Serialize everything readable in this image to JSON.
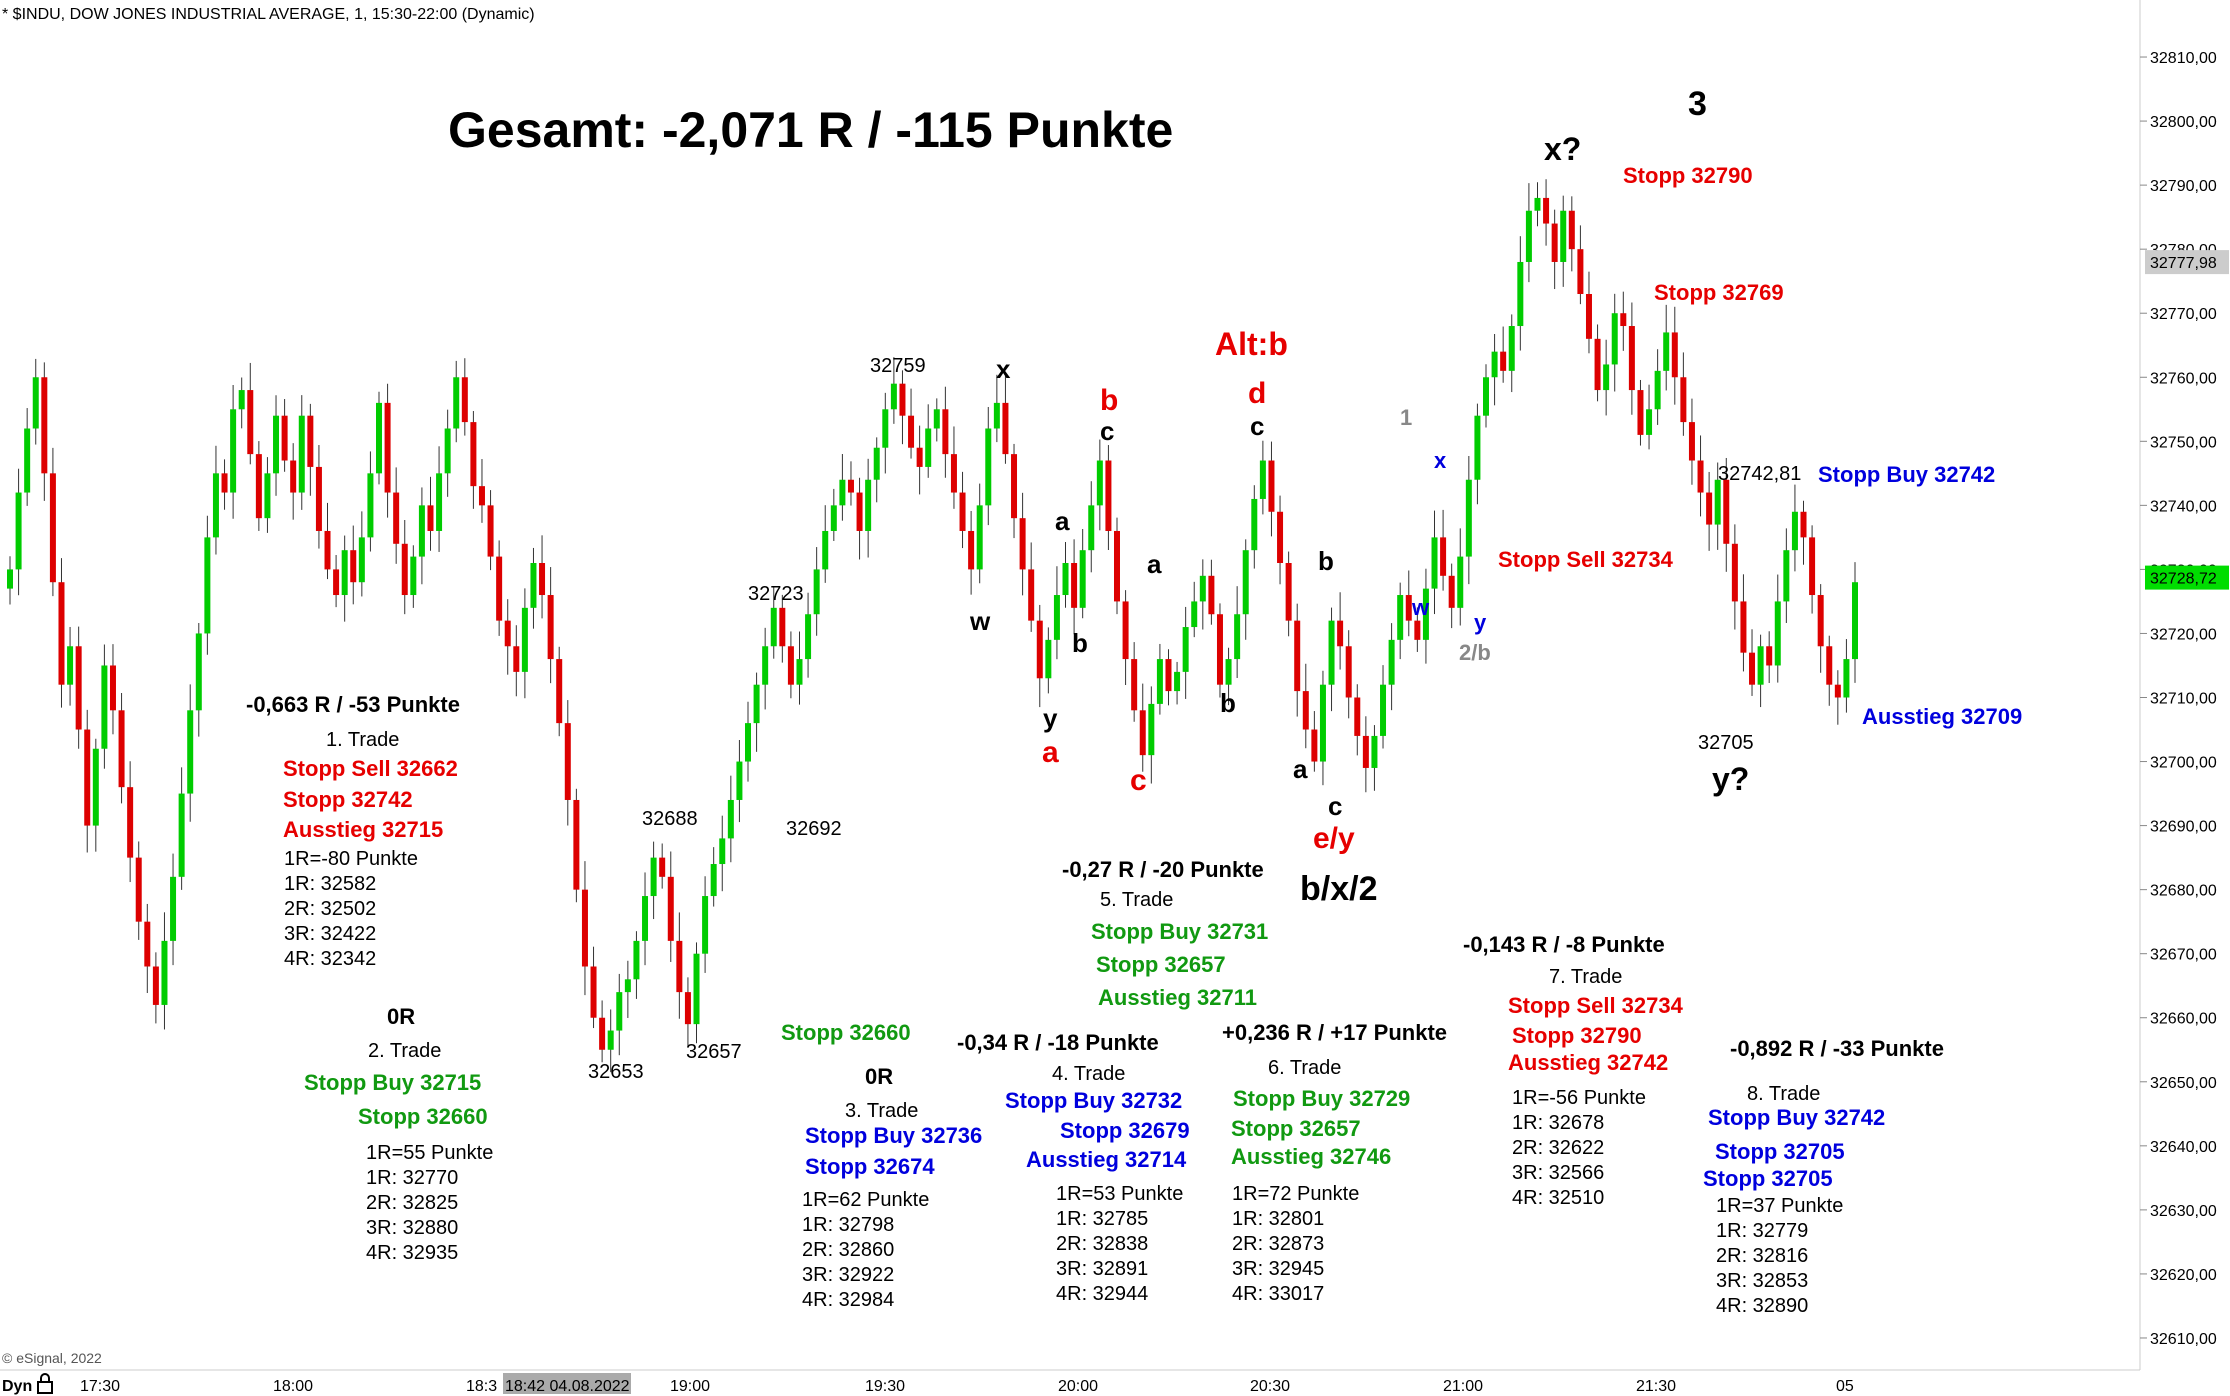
{
  "header": "* $INDU, DOW JONES INDUSTRIAL AVERAGE, 1, 15:30-22:00 (Dynamic)",
  "copyright": "© eSignal, 2022",
  "title": "Gesamt: -2,071 R / -115 Punkte",
  "colors": {
    "up": "#00cc00",
    "down": "#dd0000",
    "red": "#e60000",
    "green": "#119911",
    "blue": "#0000dd",
    "black": "#000000",
    "gray": "#888888"
  },
  "chart_data": {
    "type": "candlestick",
    "yaxis": {
      "min": 32605,
      "max": 32815,
      "ticks": [
        "32810,00",
        "32800,00",
        "32790,00",
        "32780,00",
        "32770,00",
        "32760,00",
        "32750,00",
        "32740,00",
        "32730,00",
        "32720,00",
        "32710,00",
        "32700,00",
        "32690,00",
        "32680,00",
        "32670,00",
        "32660,00",
        "32650,00",
        "32640,00",
        "32630,00",
        "32620,00",
        "32610,00"
      ]
    },
    "last_price_tags": [
      {
        "value": "32777,98",
        "style": "gray"
      },
      {
        "value": "32728,72",
        "style": "green"
      }
    ],
    "xaxis": {
      "labels": [
        "Dyn",
        "17:30",
        "18:00",
        "18:3",
        "18:42 04.08.2022",
        "19:00",
        "19:30",
        "20:00",
        "20:30",
        "21:00",
        "21:30",
        "05"
      ]
    },
    "closes": [
      32730,
      32742,
      32752,
      32760,
      32745,
      32728,
      32712,
      32718,
      32705,
      32690,
      32702,
      32715,
      32708,
      32696,
      32685,
      32675,
      32668,
      32662,
      32672,
      32682,
      32695,
      32708,
      32720,
      32735,
      32745,
      32742,
      32755,
      32758,
      32748,
      32738,
      32745,
      32754,
      32747,
      32742,
      32754,
      32746,
      32736,
      32730,
      32726,
      32733,
      32728,
      32735,
      32745,
      32756,
      32742,
      32734,
      32726,
      32732,
      32740,
      32736,
      32745,
      32752,
      32760,
      32753,
      32743,
      32740,
      32732,
      32722,
      32718,
      32714,
      32724,
      32731,
      32726,
      32716,
      32706,
      32694,
      32680,
      32668,
      32660,
      32655,
      32658,
      32664,
      32666,
      32672,
      32679,
      32685,
      32682,
      32672,
      32664,
      32659,
      32670,
      32679,
      32684,
      32688,
      32694,
      32700,
      32706,
      32712,
      32718,
      32724,
      32718,
      32712,
      32716,
      32723,
      32730,
      32736,
      32740,
      32744,
      32742,
      32736,
      32744,
      32749,
      32755,
      32759,
      32754,
      32749,
      32746,
      32752,
      32755,
      32748,
      32742,
      32736,
      32730,
      32740,
      32752,
      32756,
      32748,
      32738,
      32730,
      32722,
      32713,
      32719,
      32726,
      32731,
      32724,
      32733,
      32740,
      32747,
      32736,
      32725,
      32716,
      32708,
      32701,
      32709,
      32716,
      32711,
      32714,
      32721,
      32725,
      32729,
      32723,
      32712,
      32716,
      32723,
      32733,
      32741,
      32747,
      32739,
      32731,
      32722,
      32711,
      32705,
      32700,
      32712,
      32722,
      32718,
      32710,
      32704,
      32699,
      32704,
      32712,
      32719,
      32726,
      32722,
      32719,
      32727,
      32735,
      32729,
      32724,
      32732,
      32744,
      32754,
      32760,
      32764,
      32761,
      32768,
      32778,
      32786,
      32788,
      32784,
      32778,
      32786,
      32780,
      32773,
      32766,
      32758,
      32762,
      32770,
      32768,
      32758,
      32751,
      32755,
      32761,
      32767,
      32760,
      32753,
      32747,
      32742,
      32737,
      32744,
      32734,
      32725,
      32717,
      32712,
      32718,
      32715,
      32725,
      32733,
      32739,
      32735,
      32726,
      32718,
      32712,
      32710,
      32716,
      32728
    ]
  },
  "wave_labels": [
    {
      "text": "3",
      "color": "black",
      "x": 32768,
      "v": 32800
    },
    {
      "text": "x?",
      "color": "black"
    },
    {
      "text": "x",
      "color": "black"
    },
    {
      "text": "w",
      "color": "black"
    },
    {
      "text": "a",
      "color": "black"
    },
    {
      "text": "b",
      "color": "black"
    },
    {
      "text": "y",
      "color": "black"
    },
    {
      "text": "a",
      "color": "red"
    },
    {
      "text": "b",
      "color": "red"
    },
    {
      "text": "c",
      "color": "black"
    },
    {
      "text": "a",
      "color": "black"
    },
    {
      "text": "c",
      "color": "red"
    },
    {
      "text": "Alt:b",
      "color": "red"
    },
    {
      "text": "d",
      "color": "red"
    },
    {
      "text": "c",
      "color": "black"
    },
    {
      "text": "b",
      "color": "black"
    },
    {
      "text": "b",
      "color": "black"
    },
    {
      "text": "a",
      "color": "black"
    },
    {
      "text": "c",
      "color": "black"
    },
    {
      "text": "e/y",
      "color": "red"
    },
    {
      "text": "b/x/2",
      "color": "black"
    },
    {
      "text": "1",
      "color": "gray"
    },
    {
      "text": "x",
      "color": "blue"
    },
    {
      "text": "w",
      "color": "blue"
    },
    {
      "text": "y",
      "color": "blue"
    },
    {
      "text": "2/b",
      "color": "gray"
    },
    {
      "text": "y?",
      "color": "black"
    }
  ],
  "price_labels": [
    "32759",
    "32723",
    "32688",
    "32692",
    "32653",
    "32657",
    "32742,81",
    "32705"
  ],
  "chart_annotations": [
    {
      "text": "Stopp 32790",
      "color": "red"
    },
    {
      "text": "Stopp 32769",
      "color": "red"
    },
    {
      "text": "Stopp Buy 32742",
      "color": "blue"
    },
    {
      "text": "Stopp Sell 32734",
      "color": "red"
    },
    {
      "text": "Ausstieg 32709",
      "color": "blue"
    }
  ],
  "trades": [
    {
      "result": "-0,663 R / -53 Punkte",
      "name": "1. Trade",
      "orders": [
        {
          "text": "Stopp Sell 32662",
          "color": "red"
        },
        {
          "text": "Stopp 32742",
          "color": "red"
        },
        {
          "text": "Ausstieg 32715",
          "color": "red"
        }
      ],
      "targets": [
        "1R=-80 Punkte",
        "1R: 32582",
        "2R: 32502",
        "3R: 32422",
        "4R: 32342"
      ]
    },
    {
      "result": "0R",
      "name": "2. Trade",
      "orders": [
        {
          "text": "Stopp Buy 32715",
          "color": "green"
        },
        {
          "text": "Stopp 32660",
          "color": "green"
        }
      ],
      "targets": [
        "1R=55 Punkte",
        "1R: 32770",
        "2R: 32825",
        "3R: 32880",
        "4R: 32935"
      ]
    },
    {
      "result": "0R",
      "name": "3. Trade",
      "pre": {
        "text": "Stopp 32660",
        "color": "green"
      },
      "orders": [
        {
          "text": "Stopp Buy 32736",
          "color": "blue"
        },
        {
          "text": "Stopp 32674",
          "color": "blue"
        }
      ],
      "targets": [
        "1R=62 Punkte",
        "1R: 32798",
        "2R: 32860",
        "3R: 32922",
        "4R: 32984"
      ]
    },
    {
      "result": "-0,34 R / -18 Punkte",
      "name": "4. Trade",
      "orders": [
        {
          "text": "Stopp Buy 32732",
          "color": "blue"
        },
        {
          "text": "Stopp 32679",
          "color": "blue"
        },
        {
          "text": "Ausstieg 32714",
          "color": "blue"
        }
      ],
      "targets": [
        "1R=53 Punkte",
        "1R: 32785",
        "2R: 32838",
        "3R: 32891",
        "4R: 32944"
      ]
    },
    {
      "result": "-0,27 R / -20 Punkte",
      "name": "5. Trade",
      "orders": [
        {
          "text": "Stopp Buy 32731",
          "color": "green"
        },
        {
          "text": "Stopp 32657",
          "color": "green"
        },
        {
          "text": "Ausstieg 32711",
          "color": "green"
        }
      ],
      "targets": []
    },
    {
      "result": "+0,236 R / +17 Punkte",
      "name": "6. Trade",
      "orders": [
        {
          "text": "Stopp Buy 32729",
          "color": "green"
        },
        {
          "text": "Stopp 32657",
          "color": "green"
        },
        {
          "text": "Ausstieg 32746",
          "color": "green"
        }
      ],
      "targets": [
        "1R=72 Punkte",
        "1R: 32801",
        "2R: 32873",
        "3R: 32945",
        "4R: 33017"
      ]
    },
    {
      "result": "-0,143 R / -8 Punkte",
      "name": "7. Trade",
      "orders": [
        {
          "text": "Stopp Sell 32734",
          "color": "red"
        },
        {
          "text": "Stopp 32790",
          "color": "red"
        },
        {
          "text": "Ausstieg 32742",
          "color": "red"
        }
      ],
      "targets": [
        "1R=-56 Punkte",
        "1R: 32678",
        "2R: 32622",
        "3R: 32566",
        "4R: 32510"
      ]
    },
    {
      "result": "-0,892 R / -33 Punkte",
      "name": "8. Trade",
      "orders": [
        {
          "text": "Stopp Buy 32742",
          "color": "blue"
        },
        {
          "text": "Stopp 32705",
          "color": "blue"
        },
        {
          "text": "Stopp 32705",
          "color": "blue"
        }
      ],
      "targets": [
        "1R=37 Punkte",
        "1R: 32779",
        "2R: 32816",
        "3R: 32853",
        "4R: 32890"
      ]
    }
  ]
}
